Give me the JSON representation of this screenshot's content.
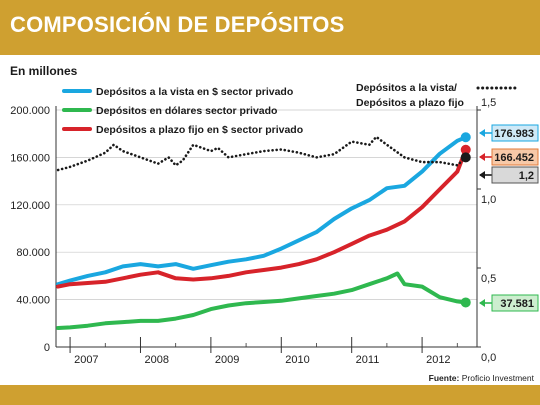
{
  "header": {
    "title": "COMPOSICIÓN DE DEPÓSITOS"
  },
  "units_label": "En millones",
  "source": {
    "label": "Fuente:",
    "name": "Proficio Investment"
  },
  "colors": {
    "vista": "#1aa7e0",
    "dolares": "#2fb84f",
    "plazo": "#d7232a",
    "ratio": "#1a1a1a",
    "header": "#cfa030"
  },
  "chart_data": {
    "type": "line",
    "x_ticks": [
      "2007",
      "2008",
      "2009",
      "2010",
      "2011",
      "2012"
    ],
    "x_range": [
      2006.8,
      2012.78
    ],
    "ylim_left": [
      0,
      200000
    ],
    "yticks_left": [
      "0",
      "40.000",
      "80.000",
      "120.000",
      "160.000",
      "200.000"
    ],
    "ylim_right": [
      0,
      1.5
    ],
    "yticks_right": [
      "0,0",
      "0,5",
      "1,0",
      "1,5"
    ],
    "grid": true,
    "legend_position": "top-left",
    "series": [
      {
        "key": "vista",
        "name": "Depósitos a la vista en $ sector privado",
        "axis": "left",
        "end_label": "176.983",
        "x": [
          2006.83,
          2007.0,
          2007.25,
          2007.5,
          2007.75,
          2008.0,
          2008.25,
          2008.5,
          2008.75,
          2009.0,
          2009.25,
          2009.5,
          2009.75,
          2010.0,
          2010.25,
          2010.5,
          2010.75,
          2011.0,
          2011.25,
          2011.5,
          2011.75,
          2012.0,
          2012.25,
          2012.5,
          2012.62
        ],
        "values": [
          53000,
          56000,
          60000,
          63000,
          68000,
          70000,
          68000,
          70000,
          66000,
          69000,
          72000,
          74000,
          77000,
          83000,
          90000,
          97000,
          108000,
          117000,
          124000,
          134000,
          136000,
          148000,
          163000,
          174000,
          177000
        ]
      },
      {
        "key": "dolares",
        "name": "Depósitos en dólares sector privado",
        "axis": "left",
        "end_label": "37.581",
        "x": [
          2006.83,
          2007.0,
          2007.25,
          2007.5,
          2007.75,
          2008.0,
          2008.25,
          2008.5,
          2008.75,
          2009.0,
          2009.25,
          2009.5,
          2009.75,
          2010.0,
          2010.25,
          2010.5,
          2010.75,
          2011.0,
          2011.25,
          2011.5,
          2011.65,
          2011.75,
          2012.0,
          2012.25,
          2012.5,
          2012.62
        ],
        "values": [
          16000,
          16500,
          18000,
          20000,
          21000,
          22000,
          22000,
          24000,
          27000,
          32000,
          35000,
          37000,
          38000,
          39000,
          41000,
          43000,
          45000,
          48000,
          53000,
          58000,
          62000,
          53000,
          51000,
          42000,
          38500,
          37581
        ]
      },
      {
        "key": "plazo",
        "name": "Depósitos a plazo fijo en $ sector privado",
        "axis": "left",
        "end_label": "166.452",
        "x": [
          2006.83,
          2007.0,
          2007.25,
          2007.5,
          2007.75,
          2008.0,
          2008.25,
          2008.5,
          2008.75,
          2009.0,
          2009.25,
          2009.5,
          2009.75,
          2010.0,
          2010.25,
          2010.5,
          2010.75,
          2011.0,
          2011.25,
          2011.5,
          2011.75,
          2012.0,
          2012.25,
          2012.5,
          2012.62
        ],
        "values": [
          51000,
          53000,
          54000,
          55000,
          58000,
          61000,
          63000,
          58000,
          57000,
          58000,
          60000,
          63000,
          65000,
          67000,
          70000,
          74000,
          80000,
          87000,
          94000,
          99000,
          106000,
          118000,
          133000,
          148000,
          166452
        ]
      },
      {
        "key": "ratio",
        "name": "Depósitos a la vista/ Depósitos a plazo fijo",
        "axis": "right",
        "end_label": "1,2",
        "x": [
          2006.83,
          2007.0,
          2007.25,
          2007.5,
          2007.62,
          2007.75,
          2008.0,
          2008.25,
          2008.4,
          2008.5,
          2008.6,
          2008.75,
          2009.0,
          2009.1,
          2009.25,
          2009.5,
          2009.75,
          2010.0,
          2010.25,
          2010.5,
          2010.75,
          2011.0,
          2011.25,
          2011.35,
          2011.5,
          2011.75,
          2012.0,
          2012.25,
          2012.5,
          2012.62
        ],
        "values": [
          1.12,
          1.14,
          1.18,
          1.23,
          1.28,
          1.24,
          1.2,
          1.16,
          1.2,
          1.15,
          1.18,
          1.28,
          1.24,
          1.26,
          1.2,
          1.22,
          1.24,
          1.25,
          1.23,
          1.2,
          1.22,
          1.3,
          1.28,
          1.33,
          1.28,
          1.2,
          1.17,
          1.17,
          1.15,
          1.2
        ]
      }
    ]
  }
}
